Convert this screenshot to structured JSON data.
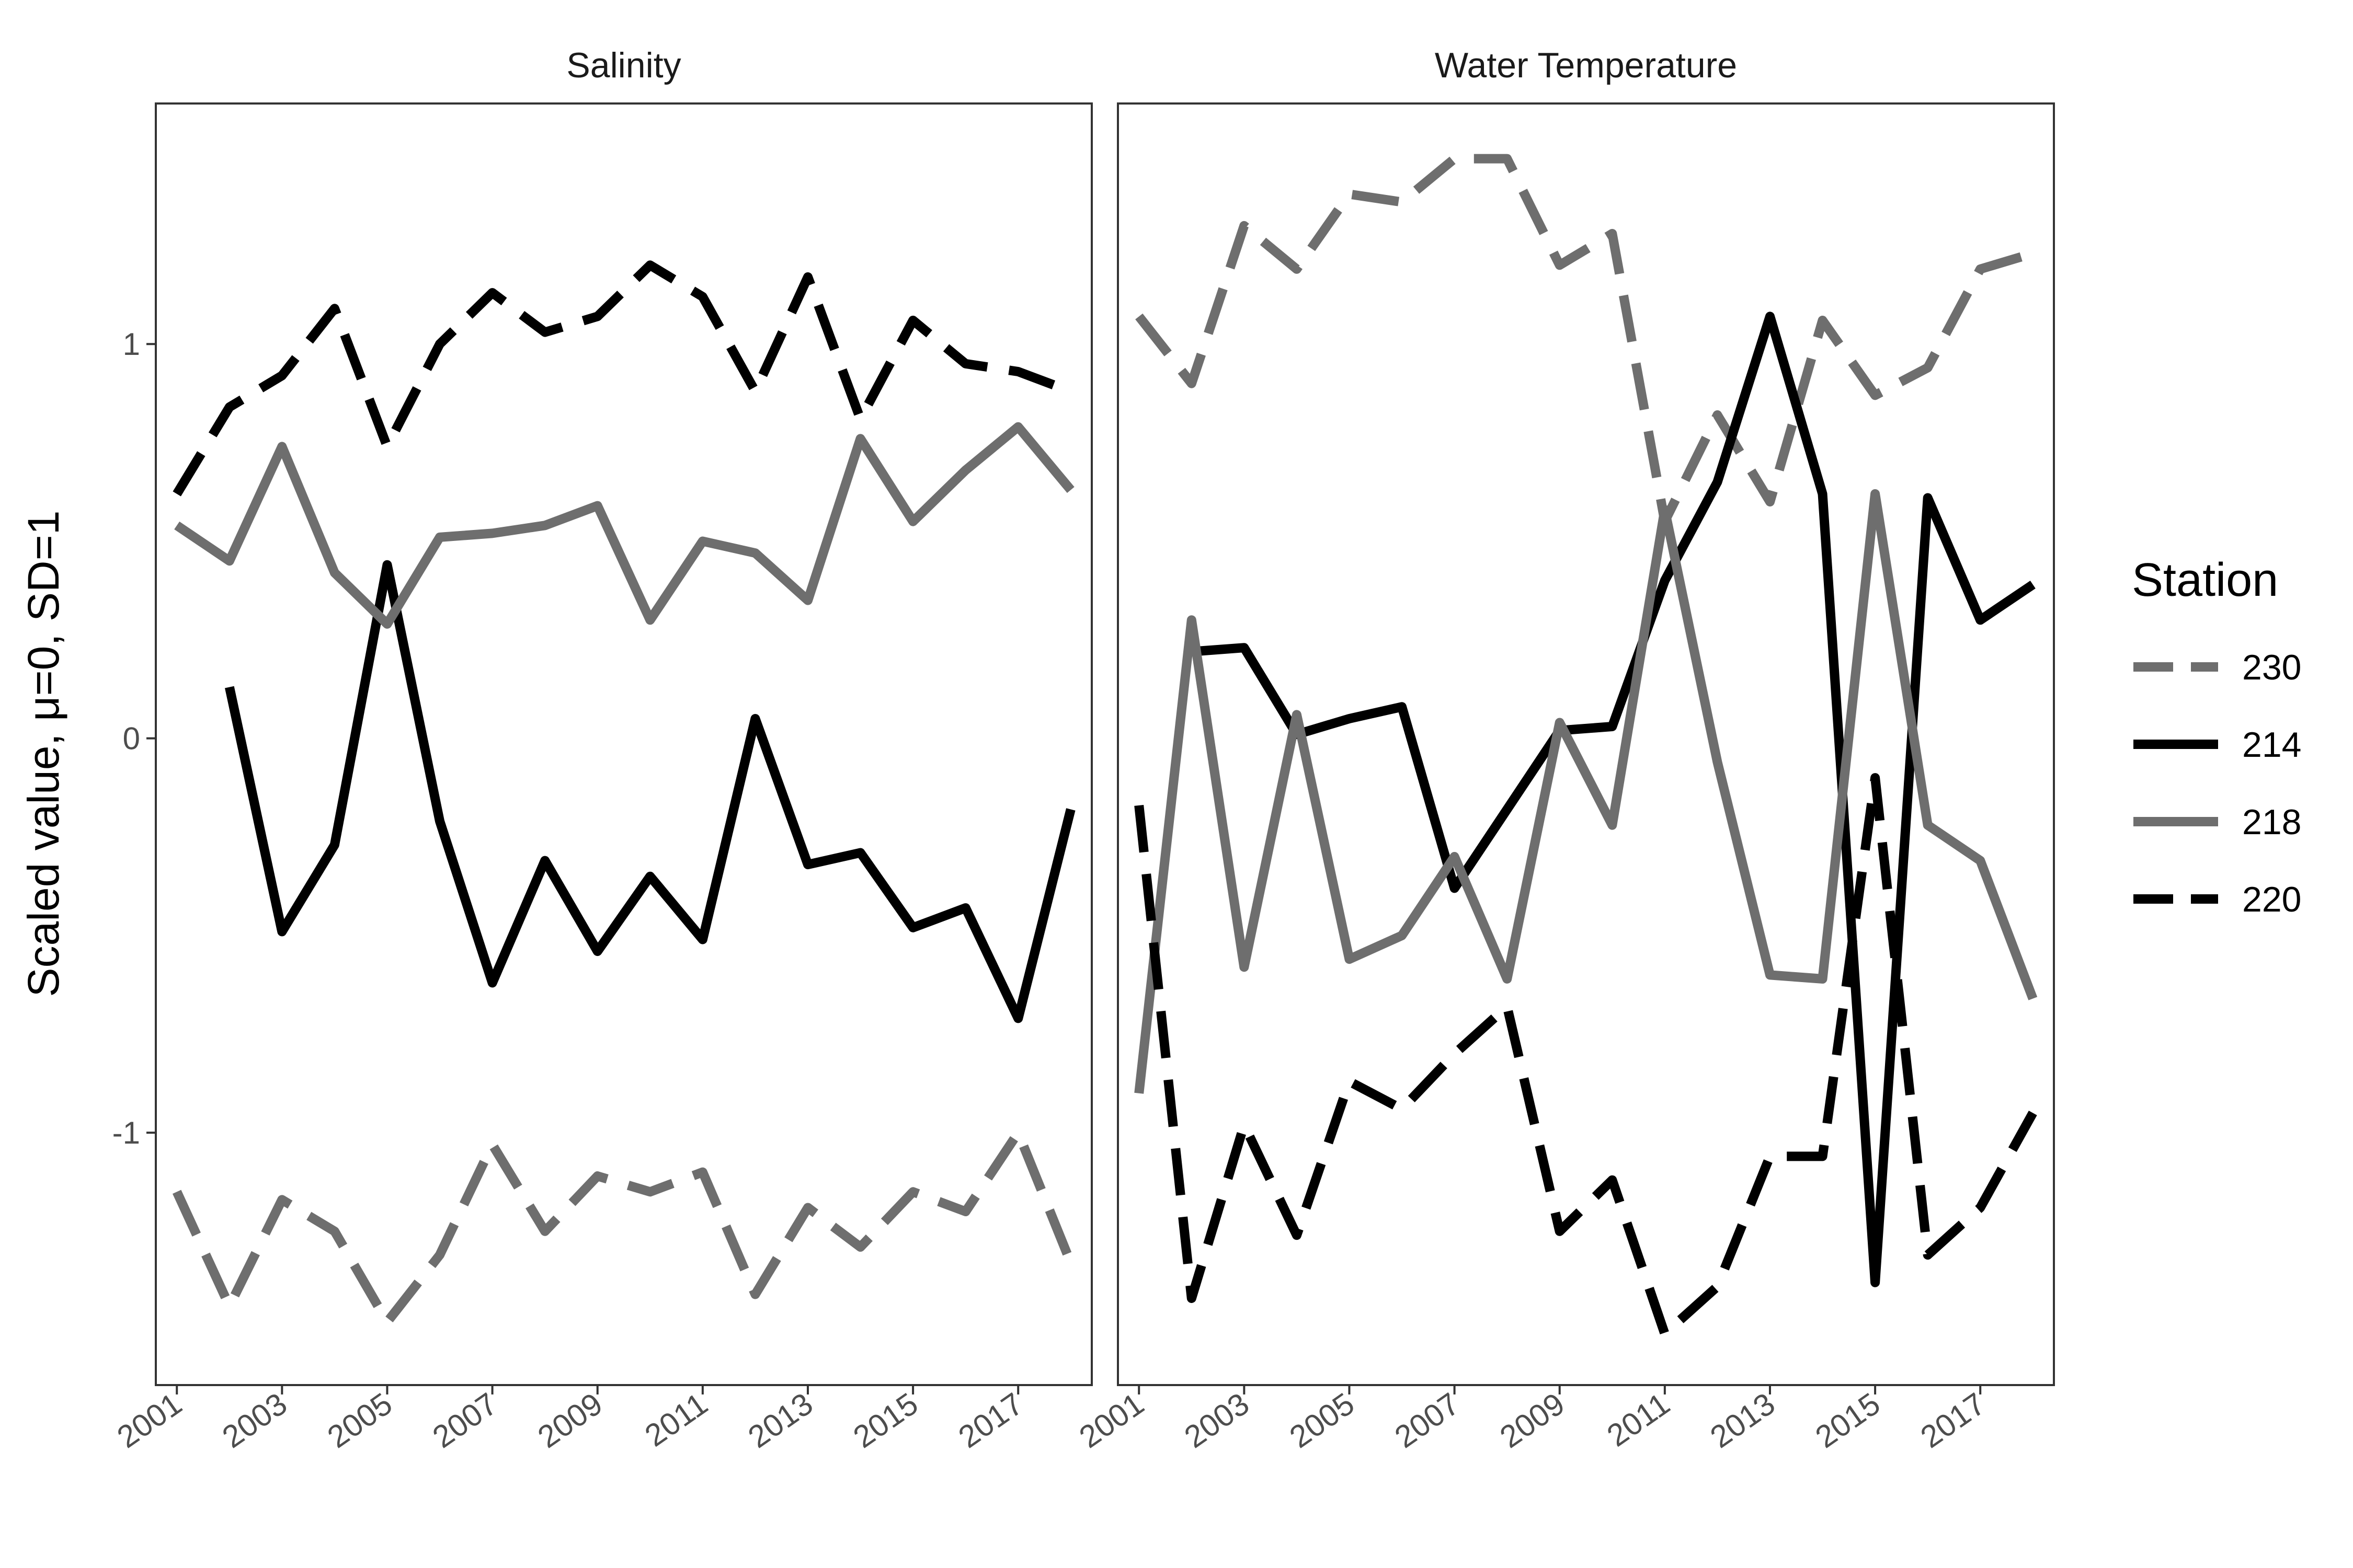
{
  "y_axis_label": "Scaled value,  μ=0, SD=1",
  "legend": {
    "title": "Station",
    "entries": [
      {
        "label": "230",
        "color": "#6e6e6e",
        "dash": "dashed"
      },
      {
        "label": "214",
        "color": "#000000",
        "dash": "solid"
      },
      {
        "label": "218",
        "color": "#6e6e6e",
        "dash": "solid"
      },
      {
        "label": "220",
        "color": "#000000",
        "dash": "dashed"
      }
    ]
  },
  "chart_data": [
    {
      "type": "line",
      "title": "Salinity",
      "xlabel": "",
      "ylabel": "Scaled value,  μ=0, SD=1",
      "x_ticks": [
        2001,
        2003,
        2005,
        2007,
        2009,
        2011,
        2013,
        2015,
        2017
      ],
      "y_ticks": [
        -1,
        0,
        1
      ],
      "xlim": [
        2000.6,
        2018.4
      ],
      "ylim": [
        -1.64,
        1.61
      ],
      "grid": false,
      "series": [
        {
          "name": "230",
          "x": [
            2001,
            2002,
            2003,
            2004,
            2005,
            2006,
            2007,
            2008,
            2009,
            2010,
            2011,
            2012,
            2013,
            2014,
            2015,
            2016,
            2017,
            2018
          ],
          "values": [
            -1.15,
            -1.44,
            -1.17,
            -1.25,
            -1.48,
            -1.31,
            -1.03,
            -1.25,
            -1.11,
            -1.15,
            -1.1,
            -1.41,
            -1.19,
            -1.29,
            -1.15,
            -1.2,
            -1.0,
            -1.33
          ]
        },
        {
          "name": "214",
          "x": [
            2002,
            2003,
            2004,
            2005,
            2006,
            2007,
            2008,
            2009,
            2010,
            2011,
            2012,
            2013,
            2014,
            2015,
            2016,
            2017,
            2018
          ],
          "values": [
            0.13,
            -0.49,
            -0.27,
            0.44,
            -0.21,
            -0.62,
            -0.31,
            -0.54,
            -0.35,
            -0.51,
            0.05,
            -0.32,
            -0.29,
            -0.48,
            -0.43,
            -0.71,
            -0.18
          ]
        },
        {
          "name": "218",
          "x": [
            2001,
            2002,
            2003,
            2004,
            2005,
            2006,
            2007,
            2008,
            2009,
            2010,
            2011,
            2012,
            2013,
            2014,
            2015,
            2016,
            2017,
            2018
          ],
          "values": [
            0.54,
            0.45,
            0.74,
            0.42,
            0.29,
            0.51,
            0.52,
            0.54,
            0.59,
            0.3,
            0.5,
            0.47,
            0.35,
            0.76,
            0.55,
            0.68,
            0.79,
            0.63
          ]
        },
        {
          "name": "220",
          "x": [
            2001,
            2002,
            2003,
            2004,
            2005,
            2006,
            2007,
            2008,
            2009,
            2010,
            2011,
            2012,
            2013,
            2014,
            2015,
            2016,
            2017,
            2018
          ],
          "values": [
            0.62,
            0.84,
            0.92,
            1.09,
            0.74,
            1.0,
            1.13,
            1.03,
            1.07,
            1.2,
            1.12,
            0.88,
            1.17,
            0.81,
            1.06,
            0.95,
            0.93,
            0.88
          ]
        }
      ]
    },
    {
      "type": "line",
      "title": "Water Temperature",
      "xlabel": "",
      "ylabel": "",
      "x_ticks": [
        2001,
        2003,
        2005,
        2007,
        2009,
        2011,
        2013,
        2015,
        2017
      ],
      "y_ticks": [
        -1,
        0,
        1
      ],
      "xlim": [
        2000.6,
        2018.4
      ],
      "ylim": [
        -1.64,
        1.61
      ],
      "grid": false,
      "series": [
        {
          "name": "230",
          "x": [
            2001,
            2002,
            2003,
            2004,
            2005,
            2006,
            2007,
            2008,
            2009,
            2010,
            2011,
            2012,
            2013,
            2014,
            2015,
            2016,
            2017,
            2018
          ],
          "values": [
            1.07,
            0.9,
            1.3,
            1.19,
            1.38,
            1.36,
            1.47,
            1.47,
            1.2,
            1.28,
            0.55,
            0.82,
            0.6,
            1.06,
            0.87,
            0.94,
            1.19,
            1.23
          ]
        },
        {
          "name": "214",
          "x": [
            2002,
            2003,
            2004,
            2005,
            2006,
            2007,
            2008,
            2009,
            2010,
            2011,
            2012,
            2013,
            2014,
            2015,
            2016,
            2017,
            2018
          ],
          "values": [
            0.22,
            0.23,
            0.01,
            0.05,
            0.08,
            -0.38,
            -0.18,
            0.02,
            0.03,
            0.4,
            0.65,
            1.07,
            0.62,
            -1.38,
            0.61,
            0.3,
            0.39
          ]
        },
        {
          "name": "218",
          "x": [
            2001,
            2002,
            2003,
            2004,
            2005,
            2006,
            2007,
            2008,
            2009,
            2010,
            2011,
            2012,
            2013,
            2014,
            2015,
            2016,
            2017,
            2018
          ],
          "values": [
            -0.9,
            0.3,
            -0.58,
            0.06,
            -0.56,
            -0.5,
            -0.3,
            -0.61,
            0.04,
            -0.22,
            0.58,
            -0.06,
            -0.6,
            -0.61,
            0.62,
            -0.22,
            -0.31,
            -0.66
          ]
        },
        {
          "name": "220",
          "x": [
            2001,
            2002,
            2003,
            2004,
            2005,
            2006,
            2007,
            2008,
            2009,
            2010,
            2011,
            2012,
            2013,
            2014,
            2015,
            2016,
            2017,
            2018
          ],
          "values": [
            -0.17,
            -1.42,
            -0.98,
            -1.26,
            -0.87,
            -0.94,
            -0.8,
            -0.68,
            -1.25,
            -1.12,
            -1.51,
            -1.39,
            -1.06,
            -1.06,
            -0.1,
            -1.31,
            -1.19,
            -0.95
          ]
        }
      ]
    }
  ]
}
